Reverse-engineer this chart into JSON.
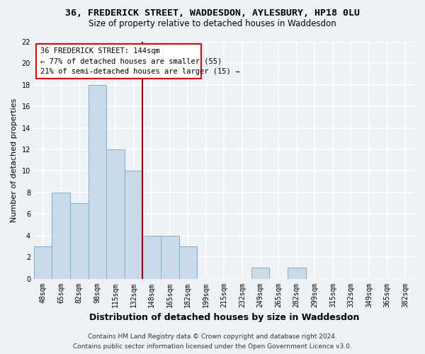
{
  "title_line1": "36, FREDERICK STREET, WADDESDON, AYLESBURY, HP18 0LU",
  "title_line2": "Size of property relative to detached houses in Waddesdon",
  "xlabel": "Distribution of detached houses by size in Waddesdon",
  "ylabel": "Number of detached properties",
  "categories": [
    "48sqm",
    "65sqm",
    "82sqm",
    "98sqm",
    "115sqm",
    "132sqm",
    "148sqm",
    "165sqm",
    "182sqm",
    "199sqm",
    "215sqm",
    "232sqm",
    "249sqm",
    "265sqm",
    "282sqm",
    "299sqm",
    "315sqm",
    "332sqm",
    "349sqm",
    "365sqm",
    "382sqm"
  ],
  "values": [
    3,
    8,
    7,
    18,
    12,
    10,
    4,
    4,
    3,
    0,
    0,
    0,
    1,
    0,
    1,
    0,
    0,
    0,
    0,
    0,
    0
  ],
  "bar_color": "#c9daea",
  "bar_edge_color": "#7aafc8",
  "reference_line_color": "#aa0000",
  "ylim": [
    0,
    22
  ],
  "yticks": [
    0,
    2,
    4,
    6,
    8,
    10,
    12,
    14,
    16,
    18,
    20,
    22
  ],
  "annotation_text_line1": "36 FREDERICK STREET: 144sqm",
  "annotation_text_line2": "← 77% of detached houses are smaller (55)",
  "annotation_text_line3": "21% of semi-detached houses are larger (15) →",
  "footer_line1": "Contains HM Land Registry data © Crown copyright and database right 2024.",
  "footer_line2": "Contains public sector information licensed under the Open Government Licence v3.0.",
  "bg_color": "#eef2f7",
  "plot_bg_color": "#eef2f7",
  "grid_color": "#ffffff",
  "title_fontsize": 9.5,
  "subtitle_fontsize": 8.5,
  "ylabel_fontsize": 8,
  "xlabel_fontsize": 9,
  "tick_fontsize": 7,
  "annotation_fontsize": 7.5,
  "footer_fontsize": 6.5
}
